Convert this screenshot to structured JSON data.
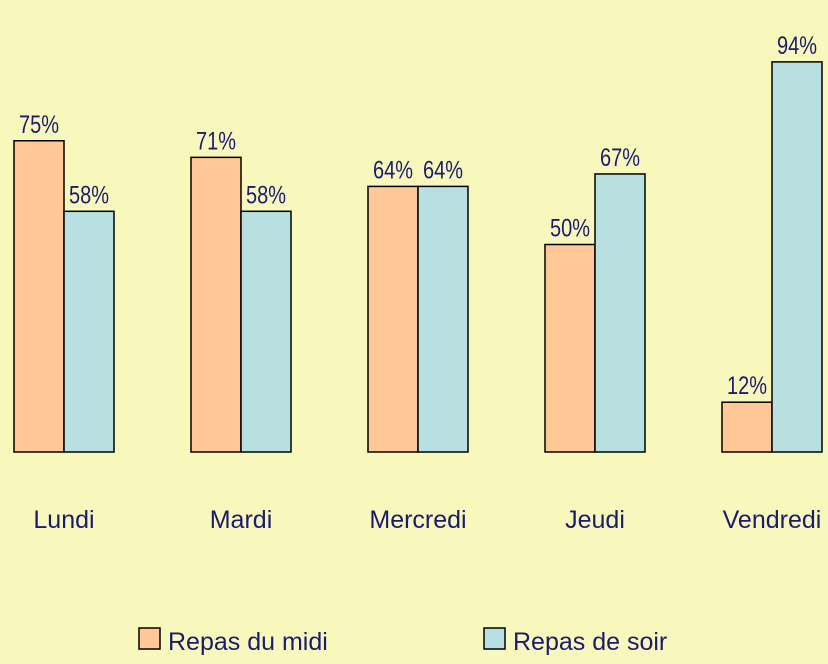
{
  "chart_data": {
    "type": "bar",
    "categories": [
      "Lundi",
      "Mardi",
      "Mercredi",
      "Jeudi",
      "Vendredi"
    ],
    "series": [
      {
        "name": "Repas du midi",
        "color": "#ffc896",
        "values": [
          75,
          71,
          64,
          50,
          12
        ],
        "value_labels": [
          "75%",
          "71%",
          "64%",
          "50%",
          "12%"
        ]
      },
      {
        "name": "Repas de soir",
        "color": "#b8e0e0",
        "values": [
          58,
          58,
          64,
          67,
          94
        ],
        "value_labels": [
          "58%",
          "58%",
          "64%",
          "67%",
          "94%"
        ]
      }
    ],
    "ylim": [
      0,
      100
    ]
  }
}
